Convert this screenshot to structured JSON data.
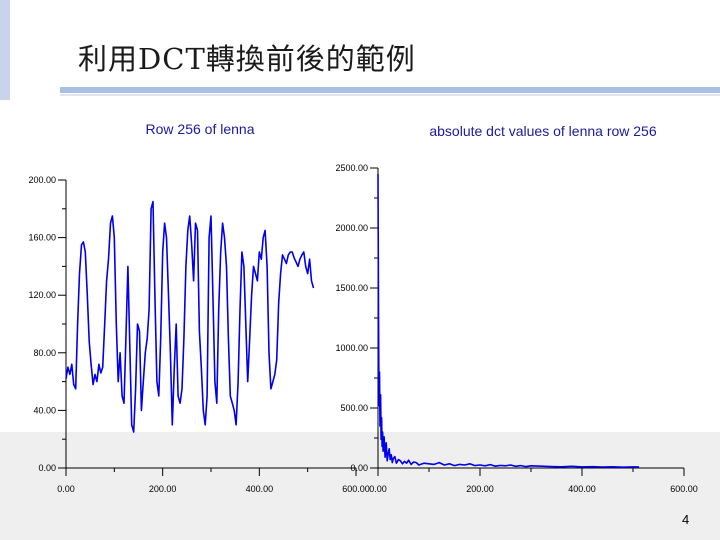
{
  "slide": {
    "title": "利用DCT轉換前後的範例",
    "page_number": "4"
  },
  "chart_data": [
    {
      "type": "line",
      "title": "Row 256 of lenna",
      "xlabel": "",
      "ylabel": "",
      "xlim": [
        0,
        600
      ],
      "ylim": [
        0,
        200
      ],
      "x_ticks": [
        "0.00",
        "200.00",
        "400.00",
        "600.00"
      ],
      "y_ticks": [
        "0.00",
        "40.00",
        "80.00",
        "120.00",
        "160.00",
        "200.00"
      ],
      "color": "#0000ee",
      "series": [
        {
          "x": [
            0,
            4,
            8,
            12,
            16,
            20,
            24,
            28,
            32,
            36,
            40,
            44,
            48,
            52,
            56,
            60,
            64,
            68,
            72,
            76,
            80,
            84,
            88,
            92,
            96,
            100,
            104,
            108,
            112,
            116,
            120,
            124,
            128,
            132,
            136,
            140,
            144,
            148,
            152,
            156,
            160,
            164,
            168,
            172,
            176,
            180,
            184,
            188,
            192,
            196,
            200,
            204,
            208,
            212,
            216,
            220,
            224,
            228,
            232,
            236,
            240,
            244,
            248,
            252,
            256,
            260,
            264,
            268,
            272,
            276,
            280,
            284,
            288,
            292,
            296,
            300,
            304,
            308,
            312,
            316,
            320,
            324,
            328,
            332,
            336,
            340,
            344,
            348,
            352,
            356,
            360,
            364,
            368,
            372,
            376,
            380,
            384,
            388,
            392,
            396,
            400,
            404,
            408,
            412,
            416,
            420,
            424,
            428,
            432,
            436,
            440,
            444,
            448,
            452,
            456,
            460,
            464,
            468,
            472,
            476,
            480,
            484,
            488,
            492,
            496,
            500,
            504,
            508,
            512
          ],
          "values": [
            62,
            70,
            65,
            72,
            58,
            55,
            100,
            135,
            155,
            157,
            150,
            120,
            88,
            72,
            58,
            65,
            60,
            72,
            66,
            70,
            100,
            130,
            145,
            170,
            175,
            160,
            100,
            60,
            80,
            50,
            45,
            90,
            140,
            85,
            30,
            25,
            55,
            100,
            95,
            40,
            60,
            80,
            90,
            110,
            180,
            185,
            120,
            60,
            50,
            90,
            150,
            170,
            160,
            120,
            80,
            30,
            70,
            100,
            50,
            45,
            55,
            90,
            140,
            165,
            175,
            155,
            130,
            170,
            165,
            95,
            70,
            40,
            30,
            50,
            160,
            175,
            120,
            60,
            45,
            110,
            150,
            170,
            160,
            140,
            90,
            50,
            45,
            40,
            30,
            60,
            110,
            150,
            140,
            100,
            60,
            90,
            120,
            140,
            135,
            130,
            150,
            145,
            160,
            165,
            140,
            80,
            55,
            60,
            65,
            75,
            115,
            135,
            148,
            145,
            142,
            148,
            150,
            150,
            146,
            143,
            140,
            145,
            148,
            150,
            140,
            135,
            145,
            130,
            125
          ]
        }
      ]
    },
    {
      "type": "line",
      "title": "absolute dct values of lenna row 256",
      "xlabel": "",
      "ylabel": "",
      "xlim": [
        0,
        600
      ],
      "ylim": [
        0,
        2500
      ],
      "x_ticks": [
        "0.00",
        "200.00",
        "400.00",
        "600.00"
      ],
      "y_ticks": [
        "0.00",
        "500.00",
        "1000.00",
        "1500.00",
        "2000.00",
        "2500.00"
      ],
      "color": "#0000ee",
      "series": [
        {
          "x": [
            0,
            1,
            2,
            3,
            4,
            5,
            6,
            7,
            8,
            9,
            10,
            12,
            14,
            16,
            18,
            20,
            22,
            24,
            26,
            28,
            30,
            33,
            36,
            40,
            44,
            48,
            52,
            56,
            60,
            65,
            70,
            75,
            80,
            90,
            100,
            110,
            120,
            130,
            140,
            150,
            160,
            170,
            180,
            190,
            200,
            210,
            220,
            230,
            240,
            250,
            260,
            270,
            280,
            290,
            300,
            320,
            340,
            360,
            380,
            400,
            420,
            440,
            460,
            480,
            500,
            512
          ],
          "values": [
            2450,
            1300,
            520,
            800,
            350,
            610,
            240,
            420,
            180,
            300,
            140,
            260,
            90,
            210,
            60,
            120,
            160,
            70,
            110,
            45,
            80,
            95,
            40,
            70,
            60,
            35,
            55,
            40,
            65,
            30,
            50,
            45,
            25,
            40,
            35,
            30,
            45,
            25,
            35,
            20,
            30,
            25,
            35,
            20,
            25,
            18,
            28,
            15,
            22,
            18,
            25,
            14,
            20,
            12,
            18,
            15,
            12,
            10,
            14,
            9,
            11,
            8,
            10,
            7,
            9,
            8
          ]
        }
      ]
    }
  ]
}
